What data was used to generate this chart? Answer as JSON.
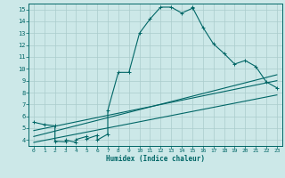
{
  "title": "",
  "xlabel": "Humidex (Indice chaleur)",
  "bg_color": "#cce8e8",
  "grid_color": "#aacccc",
  "line_color": "#006666",
  "xlim": [
    -0.5,
    23.5
  ],
  "ylim": [
    3.5,
    15.5
  ],
  "xticks": [
    0,
    1,
    2,
    3,
    4,
    5,
    6,
    7,
    8,
    9,
    10,
    11,
    12,
    13,
    14,
    15,
    16,
    17,
    18,
    19,
    20,
    21,
    22,
    23
  ],
  "yticks": [
    4,
    5,
    6,
    7,
    8,
    9,
    10,
    11,
    12,
    13,
    14,
    15
  ],
  "curve1_x": [
    0,
    1,
    2,
    2,
    3,
    3,
    4,
    4,
    5,
    5,
    6,
    6,
    7,
    7,
    8,
    9,
    10,
    11,
    12,
    13,
    14,
    15,
    15,
    16,
    17,
    18,
    19,
    20,
    21,
    22,
    23
  ],
  "curve1_y": [
    5.5,
    5.3,
    5.2,
    3.9,
    3.85,
    4.0,
    3.8,
    4.05,
    4.3,
    4.1,
    4.4,
    4.0,
    4.5,
    6.5,
    9.7,
    9.7,
    13.0,
    14.2,
    15.2,
    15.2,
    14.7,
    15.1,
    15.2,
    13.5,
    12.1,
    11.3,
    10.4,
    10.7,
    10.2,
    8.9,
    8.4
  ],
  "line1_x": [
    0,
    23
  ],
  "line1_y": [
    3.8,
    7.8
  ],
  "line2_x": [
    0,
    23
  ],
  "line2_y": [
    4.3,
    9.5
  ],
  "line3_x": [
    0,
    23
  ],
  "line3_y": [
    4.8,
    9.0
  ]
}
